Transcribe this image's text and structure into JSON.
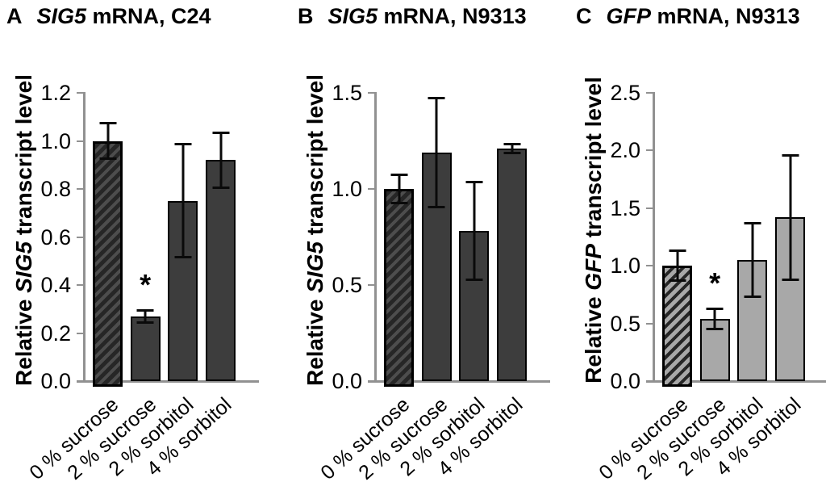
{
  "figure": {
    "background": "#ffffff",
    "text_color": "#000000"
  },
  "panels": [
    {
      "letter": "A",
      "title_gene": "SIG5",
      "title_rest": " mRNA, C24",
      "ylabel_prefix": "Relative ",
      "ylabel_gene": "SIG5",
      "ylabel_suffix": " transcript level",
      "bar_fill": "#3d3d3d",
      "hatch_base": "#262626",
      "hatch_stripe": "#4d4d4d",
      "axis_color": "#919191",
      "error_color": "#0a0a0a"
    },
    {
      "letter": "B",
      "title_gene": "SIG5",
      "title_rest": " mRNA, N9313",
      "ylabel_prefix": "Relative ",
      "ylabel_gene": "SIG5",
      "ylabel_suffix": " transcript level",
      "bar_fill": "#3d3d3d",
      "hatch_base": "#262626",
      "hatch_stripe": "#4d4d4d",
      "axis_color": "#919191",
      "error_color": "#0a0a0a"
    },
    {
      "letter": "C",
      "title_gene": "GFP",
      "title_rest": " mRNA, N9313",
      "ylabel_prefix": "Relative ",
      "ylabel_gene": "GFP",
      "ylabel_suffix": " transcript level",
      "bar_fill": "#a8a8a8",
      "hatch_base": "#a8a8a8",
      "hatch_stripe": "#262626",
      "axis_color": "#919191",
      "error_color": "#0a0a0a"
    }
  ],
  "chart_data": [
    {
      "type": "bar",
      "panel": "A",
      "title": "SIG5 mRNA, C24",
      "xlabel": "",
      "ylabel": "Relative SIG5 transcript level",
      "categories": [
        "0 % sucrose",
        "2 % sucrose",
        "2 % sorbitol",
        "4 % sorbitol"
      ],
      "values": [
        1.0,
        0.27,
        0.75,
        0.92
      ],
      "errors": [
        0.08,
        0.03,
        0.24,
        0.12
      ],
      "significance": [
        "",
        "*",
        "",
        ""
      ],
      "ylim": [
        0,
        1.2
      ],
      "yticks": [
        0.0,
        0.2,
        0.4,
        0.6,
        0.8,
        1.0,
        1.2
      ],
      "ytick_labels": [
        "0.0",
        "0.2",
        "0.4",
        "0.6",
        "0.8",
        "1.0",
        "1.2"
      ],
      "first_bar_hatched": true,
      "grid": false,
      "legend": null
    },
    {
      "type": "bar",
      "panel": "B",
      "title": "SIG5 mRNA, N9313",
      "xlabel": "",
      "ylabel": "Relative SIG5 transcript level",
      "categories": [
        "0 % sucrose",
        "2 % sucrose",
        "2 % sorbitol",
        "4 % sorbitol"
      ],
      "values": [
        1.0,
        1.19,
        0.78,
        1.21
      ],
      "errors": [
        0.08,
        0.29,
        0.26,
        0.03
      ],
      "significance": [
        "",
        "",
        "",
        ""
      ],
      "ylim": [
        0,
        1.5
      ],
      "yticks": [
        0.0,
        0.5,
        1.0,
        1.5
      ],
      "ytick_labels": [
        "0.0",
        "0.5",
        "1.0",
        "1.5"
      ],
      "first_bar_hatched": true,
      "grid": false,
      "legend": null
    },
    {
      "type": "bar",
      "panel": "C",
      "title": "GFP mRNA, N9313",
      "xlabel": "",
      "ylabel": "Relative GFP transcript level",
      "categories": [
        "0 % sucrose",
        "2 % sucrose",
        "2 % sorbitol",
        "4 % sorbitol"
      ],
      "values": [
        1.0,
        0.54,
        1.05,
        1.42
      ],
      "errors": [
        0.14,
        0.1,
        0.33,
        0.55
      ],
      "significance": [
        "",
        "*",
        "",
        ""
      ],
      "ylim": [
        0,
        2.5
      ],
      "yticks": [
        0.0,
        0.5,
        1.0,
        1.5,
        2.0,
        2.5
      ],
      "ytick_labels": [
        "0.0",
        "0.5",
        "1.0",
        "1.5",
        "2.0",
        "2.5"
      ],
      "first_bar_hatched": true,
      "grid": false,
      "legend": null
    }
  ]
}
